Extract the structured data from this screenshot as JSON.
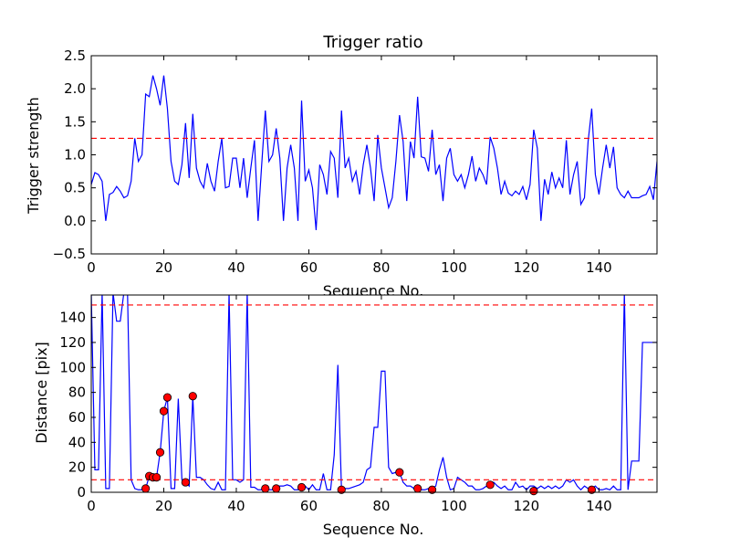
{
  "chart_data": [
    {
      "type": "line",
      "title": "Trigger ratio",
      "xlabel": "Sequence No.",
      "ylabel": "Trigger strength",
      "xlim": [
        0,
        156
      ],
      "ylim": [
        -0.5,
        2.5
      ],
      "xticks": [
        0,
        20,
        40,
        60,
        80,
        100,
        120,
        140
      ],
      "yticks": [
        -0.5,
        0.0,
        0.5,
        1.0,
        1.5,
        2.0,
        2.5
      ],
      "ytick_labels": [
        "−0.5",
        "0.0",
        "0.5",
        "1.0",
        "1.5",
        "2.0",
        "2.5"
      ],
      "series": [
        {
          "color": "#0000ff",
          "style": "solid",
          "x": [
            0,
            1,
            2,
            3,
            4,
            5,
            6,
            7,
            8,
            9,
            10,
            11,
            12,
            13,
            14,
            15,
            16,
            17,
            18,
            19,
            20,
            21,
            22,
            23,
            24,
            25,
            26,
            27,
            28,
            29,
            30,
            31,
            32,
            33,
            34,
            35,
            36,
            37,
            38,
            39,
            40,
            41,
            42,
            43,
            44,
            45,
            46,
            47,
            48,
            49,
            50,
            51,
            52,
            53,
            54,
            55,
            56,
            57,
            58,
            59,
            60,
            61,
            62,
            63,
            64,
            65,
            66,
            67,
            68,
            69,
            70,
            71,
            72,
            73,
            74,
            75,
            76,
            77,
            78,
            79,
            80,
            81,
            82,
            83,
            84,
            85,
            86,
            87,
            88,
            89,
            90,
            91,
            92,
            93,
            94,
            95,
            96,
            97,
            98,
            99,
            100,
            101,
            102,
            103,
            104,
            105,
            106,
            107,
            108,
            109,
            110,
            111,
            112,
            113,
            114,
            115,
            116,
            117,
            118,
            119,
            120,
            121,
            122,
            123,
            124,
            125,
            126,
            127,
            128,
            129,
            130,
            131,
            132,
            133,
            134,
            135,
            136,
            137,
            138,
            139,
            140,
            141,
            142,
            143,
            144,
            145,
            146,
            147,
            148,
            149,
            150,
            151,
            152,
            153,
            154,
            155,
            156
          ],
          "y": [
            0.55,
            0.73,
            0.7,
            0.6,
            0.0,
            0.4,
            0.43,
            0.52,
            0.45,
            0.35,
            0.38,
            0.6,
            1.25,
            0.9,
            1.0,
            1.92,
            1.88,
            2.2,
            2.0,
            1.75,
            2.2,
            1.7,
            0.9,
            0.6,
            0.55,
            0.85,
            1.48,
            0.65,
            1.62,
            0.8,
            0.6,
            0.5,
            0.87,
            0.6,
            0.45,
            0.9,
            1.25,
            0.5,
            0.52,
            0.95,
            0.95,
            0.5,
            0.95,
            0.35,
            0.8,
            1.22,
            0.0,
            0.85,
            1.67,
            0.9,
            1.0,
            1.4,
            0.95,
            0.0,
            0.8,
            1.15,
            0.8,
            0.0,
            1.82,
            0.6,
            0.77,
            0.5,
            -0.14,
            0.85,
            0.7,
            0.4,
            1.05,
            0.95,
            0.35,
            1.67,
            0.8,
            0.95,
            0.6,
            0.75,
            0.4,
            0.85,
            1.15,
            0.8,
            0.3,
            1.3,
            0.8,
            0.5,
            0.2,
            0.35,
            0.9,
            1.6,
            1.2,
            0.3,
            1.2,
            0.95,
            1.88,
            0.97,
            0.95,
            0.75,
            1.38,
            0.7,
            0.85,
            0.3,
            0.95,
            1.1,
            0.7,
            0.6,
            0.7,
            0.5,
            0.7,
            0.98,
            0.6,
            0.8,
            0.7,
            0.55,
            1.27,
            1.1,
            0.8,
            0.4,
            0.6,
            0.42,
            0.38,
            0.45,
            0.4,
            0.52,
            0.32,
            0.55,
            1.38,
            1.1,
            0.0,
            0.63,
            0.4,
            0.74,
            0.5,
            0.65,
            0.5,
            1.22,
            0.4,
            0.7,
            0.9,
            0.25,
            0.35,
            1.2,
            1.7,
            0.7,
            0.4,
            0.8,
            1.15,
            0.8,
            1.12,
            0.5,
            0.4,
            0.35,
            0.45,
            0.35,
            0.35,
            0.35,
            0.38,
            0.4,
            0.52,
            0.32,
            0.9
          ]
        },
        {
          "color": "#ff0000",
          "style": "dashed",
          "x": [
            0,
            156
          ],
          "y": [
            1.25,
            1.25
          ]
        }
      ]
    },
    {
      "type": "line",
      "title": "",
      "xlabel": "Sequence No.",
      "ylabel": "Distance [pix]",
      "xlim": [
        0,
        156
      ],
      "ylim": [
        0,
        158
      ],
      "xticks": [
        0,
        20,
        40,
        60,
        80,
        100,
        120,
        140
      ],
      "yticks": [
        0,
        20,
        40,
        60,
        80,
        100,
        120,
        140
      ],
      "ytick_labels": [
        "0",
        "20",
        "40",
        "60",
        "80",
        "100",
        "120",
        "140"
      ],
      "series": [
        {
          "color": "#0000ff",
          "style": "solid",
          "x": [
            0,
            1,
            2,
            3,
            4,
            5,
            6,
            7,
            8,
            9,
            10,
            11,
            12,
            13,
            14,
            15,
            16,
            17,
            18,
            19,
            20,
            21,
            22,
            23,
            24,
            25,
            26,
            27,
            28,
            29,
            30,
            31,
            32,
            33,
            34,
            35,
            36,
            37,
            38,
            39,
            40,
            41,
            42,
            43,
            44,
            45,
            46,
            47,
            48,
            49,
            50,
            51,
            52,
            53,
            54,
            55,
            56,
            57,
            58,
            59,
            60,
            61,
            62,
            63,
            64,
            65,
            66,
            67,
            68,
            69,
            70,
            71,
            72,
            73,
            74,
            75,
            76,
            77,
            78,
            79,
            80,
            81,
            82,
            83,
            84,
            85,
            86,
            87,
            88,
            89,
            90,
            91,
            92,
            93,
            94,
            95,
            96,
            97,
            98,
            99,
            100,
            101,
            102,
            103,
            104,
            105,
            106,
            107,
            108,
            109,
            110,
            111,
            112,
            113,
            114,
            115,
            116,
            117,
            118,
            119,
            120,
            121,
            122,
            123,
            124,
            125,
            126,
            127,
            128,
            129,
            130,
            131,
            132,
            133,
            134,
            135,
            136,
            137,
            138,
            139,
            140,
            141,
            142,
            143,
            144,
            145,
            146,
            147,
            148,
            149,
            150,
            151,
            152,
            153,
            154,
            155,
            156
          ],
          "y": [
            160,
            18,
            18,
            160,
            3,
            3,
            160,
            137,
            137,
            160,
            160,
            10,
            3,
            2,
            2,
            3,
            13,
            10,
            12,
            32,
            65,
            76,
            3,
            3,
            75,
            10,
            8,
            5,
            77,
            12,
            12,
            10,
            6,
            3,
            2,
            8,
            2,
            2,
            160,
            10,
            10,
            8,
            10,
            160,
            4,
            4,
            2,
            2,
            3,
            2,
            2,
            3,
            5,
            5,
            6,
            5,
            2,
            2,
            4,
            5,
            2,
            6,
            2,
            2,
            15,
            2,
            2,
            30,
            102,
            2,
            3,
            3,
            4,
            5,
            6,
            8,
            18,
            20,
            52,
            52,
            97,
            97,
            20,
            15,
            16,
            16,
            8,
            5,
            5,
            3,
            2,
            2,
            2,
            3,
            3,
            5,
            18,
            28,
            12,
            2,
            3,
            12,
            10,
            8,
            5,
            5,
            2,
            2,
            3,
            5,
            8,
            8,
            5,
            3,
            5,
            2,
            2,
            8,
            4,
            5,
            2,
            5,
            5,
            3,
            5,
            3,
            5,
            3,
            5,
            3,
            5,
            10,
            8,
            10,
            5,
            2,
            5,
            3,
            3,
            5,
            2,
            2,
            3,
            2,
            5,
            2,
            2,
            160,
            2,
            25,
            25,
            25,
            120,
            120,
            120,
            120,
            120
          ]
        },
        {
          "color": "#ff0000",
          "style": "dashed",
          "x": [
            0,
            156
          ],
          "y": [
            150,
            150
          ]
        },
        {
          "color": "#ff0000",
          "style": "dashed",
          "x": [
            0,
            156
          ],
          "y": [
            10,
            10
          ]
        }
      ],
      "markers": {
        "color": "#ff0000",
        "edge": "#000000",
        "x": [
          15,
          16,
          17,
          18,
          19,
          20,
          21,
          26,
          28,
          48,
          51,
          58,
          69,
          85,
          90,
          94,
          110,
          122,
          138
        ],
        "y": [
          3,
          13,
          12,
          12,
          32,
          65,
          76,
          8,
          77,
          3,
          3,
          4,
          2,
          16,
          3,
          2,
          6,
          1,
          2
        ]
      }
    }
  ]
}
